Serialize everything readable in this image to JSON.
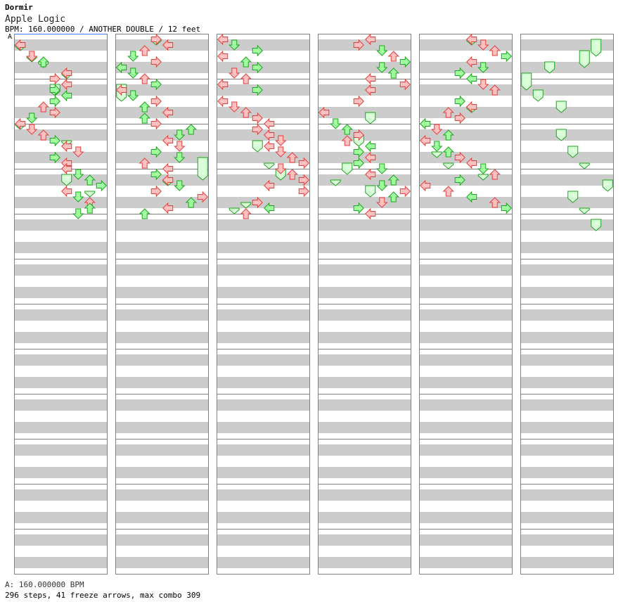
{
  "header": {
    "artist": "Dormir",
    "title": "Apple Logic",
    "info": "BPM: 160.000000 / ANOTHER DOUBLE / 12 feet"
  },
  "bpm_marker": "A",
  "footer": {
    "bpm_line": "A: 160.000000 BPM",
    "stats": "296 steps, 41 freeze arrows, max combo 309"
  },
  "colors": {
    "stripe": "#cccccc",
    "measure_line": "#808080",
    "border": "#808080",
    "red_fill": "#ffc0c0",
    "red_stroke": "#e04040",
    "green_fill": "#a0ffa0",
    "green_stroke": "#20a020",
    "freeze_fill": "#d8ffd8",
    "freeze_stroke": "#20a020"
  },
  "chart": {
    "columns": 6,
    "measures_per_column": 12,
    "beats_per_measure": 4,
    "lanes": 8,
    "lane_directions": [
      "left",
      "down",
      "up",
      "right",
      "left",
      "down",
      "up",
      "right"
    ],
    "steps": 296,
    "freeze_arrows": 41,
    "max_combo": 309,
    "notes": [
      [
        0,
        1.0,
        0,
        "r"
      ],
      [
        0,
        2.0,
        1,
        "r"
      ],
      [
        0,
        2.5,
        2,
        "g"
      ],
      [
        0,
        3.5,
        4,
        "r"
      ],
      [
        0,
        4.0,
        3,
        "r"
      ],
      [
        0,
        4.5,
        4,
        "r"
      ],
      [
        0,
        5.0,
        3,
        "g"
      ],
      [
        0,
        5.5,
        4,
        "g"
      ],
      [
        0,
        6.0,
        3,
        "g"
      ],
      [
        0,
        6.5,
        2,
        "r"
      ],
      [
        0,
        7.0,
        3,
        "r"
      ],
      [
        0,
        7.5,
        1,
        "g"
      ],
      [
        0,
        8.0,
        0,
        "r"
      ],
      [
        0,
        8.5,
        1,
        "r"
      ],
      [
        0,
        9.0,
        2,
        "r"
      ],
      [
        0,
        9.5,
        3,
        "g"
      ],
      [
        0,
        10.0,
        4,
        "r"
      ],
      [
        0,
        10.5,
        5,
        "r"
      ],
      [
        0,
        11.0,
        3,
        "g"
      ],
      [
        0,
        11.5,
        4,
        "r"
      ],
      [
        0,
        12.0,
        4,
        "r"
      ],
      [
        0,
        12.5,
        5,
        "g"
      ],
      [
        0,
        13.0,
        6,
        "g"
      ],
      [
        0,
        13.5,
        7,
        "g"
      ],
      [
        0,
        14.0,
        4,
        "r"
      ],
      [
        0,
        14.5,
        5,
        "g"
      ],
      [
        0,
        15.0,
        6,
        "r"
      ],
      [
        0,
        15.5,
        6,
        "g"
      ],
      [
        0,
        16.0,
        5,
        "g"
      ],
      [
        1,
        0.5,
        3,
        "r"
      ],
      [
        1,
        1.0,
        4,
        "r"
      ],
      [
        1,
        1.5,
        2,
        "r"
      ],
      [
        1,
        2.0,
        1,
        "g"
      ],
      [
        1,
        2.5,
        3,
        "r"
      ],
      [
        1,
        3.0,
        0,
        "g"
      ],
      [
        1,
        3.5,
        1,
        "g"
      ],
      [
        1,
        4.0,
        2,
        "r"
      ],
      [
        1,
        4.5,
        3,
        "g"
      ],
      [
        1,
        5.0,
        0,
        "r"
      ],
      [
        1,
        5.5,
        1,
        "g"
      ],
      [
        1,
        6.0,
        3,
        "r"
      ],
      [
        1,
        6.5,
        2,
        "g"
      ],
      [
        1,
        7.0,
        4,
        "r"
      ],
      [
        1,
        7.5,
        2,
        "g"
      ],
      [
        1,
        8.0,
        3,
        "r"
      ],
      [
        1,
        8.5,
        6,
        "g"
      ],
      [
        1,
        9.0,
        5,
        "g"
      ],
      [
        1,
        9.5,
        4,
        "r"
      ],
      [
        1,
        10.0,
        5,
        "r"
      ],
      [
        1,
        10.5,
        3,
        "g"
      ],
      [
        1,
        11.0,
        5,
        "g"
      ],
      [
        1,
        11.5,
        2,
        "r"
      ],
      [
        1,
        12.0,
        4,
        "r"
      ],
      [
        1,
        12.5,
        3,
        "g"
      ],
      [
        1,
        13.0,
        4,
        "r"
      ],
      [
        1,
        13.5,
        5,
        "g"
      ],
      [
        1,
        14.0,
        3,
        "r"
      ],
      [
        1,
        14.5,
        7,
        "r"
      ],
      [
        1,
        15.0,
        6,
        "g"
      ],
      [
        1,
        15.5,
        4,
        "r"
      ],
      [
        1,
        16.0,
        2,
        "g"
      ],
      [
        2,
        0.5,
        0,
        "r"
      ],
      [
        2,
        1.0,
        1,
        "g"
      ],
      [
        2,
        1.5,
        3,
        "g"
      ],
      [
        2,
        2.0,
        0,
        "r"
      ],
      [
        2,
        2.5,
        2,
        "g"
      ],
      [
        2,
        3.0,
        3,
        "g"
      ],
      [
        2,
        3.5,
        1,
        "r"
      ],
      [
        2,
        4.0,
        2,
        "r"
      ],
      [
        2,
        4.5,
        0,
        "r"
      ],
      [
        2,
        5.0,
        3,
        "g"
      ],
      [
        2,
        6.0,
        0,
        "r"
      ],
      [
        2,
        6.5,
        1,
        "r"
      ],
      [
        2,
        7.0,
        2,
        "r"
      ],
      [
        2,
        7.5,
        3,
        "r"
      ],
      [
        2,
        8.0,
        4,
        "r"
      ],
      [
        2,
        8.5,
        3,
        "r"
      ],
      [
        2,
        9.0,
        4,
        "r"
      ],
      [
        2,
        9.5,
        5,
        "r"
      ],
      [
        2,
        10.0,
        4,
        "r"
      ],
      [
        2,
        10.5,
        5,
        "r"
      ],
      [
        2,
        11.0,
        6,
        "r"
      ],
      [
        2,
        11.5,
        7,
        "r"
      ],
      [
        2,
        12.0,
        5,
        "r"
      ],
      [
        2,
        12.5,
        6,
        "r"
      ],
      [
        2,
        13.0,
        7,
        "r"
      ],
      [
        2,
        13.5,
        4,
        "r"
      ],
      [
        2,
        14.0,
        7,
        "r"
      ],
      [
        2,
        15.0,
        3,
        "r"
      ],
      [
        2,
        15.5,
        4,
        "g"
      ],
      [
        2,
        16.0,
        2,
        "r"
      ],
      [
        3,
        0.5,
        4,
        "r"
      ],
      [
        3,
        1.0,
        3,
        "r"
      ],
      [
        3,
        1.5,
        5,
        "g"
      ],
      [
        3,
        2.0,
        6,
        "r"
      ],
      [
        3,
        2.5,
        7,
        "g"
      ],
      [
        3,
        3.0,
        5,
        "g"
      ],
      [
        3,
        3.5,
        6,
        "g"
      ],
      [
        3,
        4.0,
        4,
        "r"
      ],
      [
        3,
        4.5,
        7,
        "r"
      ],
      [
        3,
        5.0,
        4,
        "r"
      ],
      [
        3,
        6.0,
        3,
        "r"
      ],
      [
        3,
        7.0,
        0,
        "r"
      ],
      [
        3,
        8.0,
        1,
        "g"
      ],
      [
        3,
        8.5,
        2,
        "g"
      ],
      [
        3,
        9.0,
        3,
        "r"
      ],
      [
        3,
        9.5,
        2,
        "r"
      ],
      [
        3,
        10.0,
        4,
        "g"
      ],
      [
        3,
        10.5,
        3,
        "g"
      ],
      [
        3,
        11.0,
        4,
        "r"
      ],
      [
        3,
        11.5,
        3,
        "g"
      ],
      [
        3,
        12.0,
        5,
        "g"
      ],
      [
        3,
        12.5,
        4,
        "r"
      ],
      [
        3,
        13.0,
        6,
        "g"
      ],
      [
        3,
        13.5,
        5,
        "g"
      ],
      [
        3,
        14.0,
        7,
        "r"
      ],
      [
        3,
        14.5,
        6,
        "g"
      ],
      [
        3,
        15.0,
        5,
        "r"
      ],
      [
        3,
        15.5,
        3,
        "g"
      ],
      [
        3,
        16.0,
        4,
        "r"
      ],
      [
        4,
        0.5,
        4,
        "r"
      ],
      [
        4,
        1.0,
        5,
        "r"
      ],
      [
        4,
        1.5,
        6,
        "r"
      ],
      [
        4,
        2.0,
        7,
        "g"
      ],
      [
        4,
        2.5,
        4,
        "r"
      ],
      [
        4,
        3.0,
        5,
        "g"
      ],
      [
        4,
        3.5,
        3,
        "g"
      ],
      [
        4,
        4.0,
        4,
        "g"
      ],
      [
        4,
        4.5,
        5,
        "r"
      ],
      [
        4,
        5.0,
        6,
        "r"
      ],
      [
        4,
        6.0,
        3,
        "g"
      ],
      [
        4,
        6.5,
        4,
        "r"
      ],
      [
        4,
        7.0,
        2,
        "r"
      ],
      [
        4,
        7.5,
        3,
        "r"
      ],
      [
        4,
        8.0,
        0,
        "g"
      ],
      [
        4,
        8.5,
        1,
        "r"
      ],
      [
        4,
        9.0,
        2,
        "g"
      ],
      [
        4,
        9.5,
        0,
        "r"
      ],
      [
        4,
        10.0,
        1,
        "g"
      ],
      [
        4,
        10.5,
        2,
        "g"
      ],
      [
        4,
        11.0,
        3,
        "r"
      ],
      [
        4,
        11.5,
        4,
        "r"
      ],
      [
        4,
        12.0,
        5,
        "g"
      ],
      [
        4,
        12.5,
        6,
        "r"
      ],
      [
        4,
        13.0,
        3,
        "g"
      ],
      [
        4,
        13.5,
        0,
        "r"
      ],
      [
        4,
        14.0,
        2,
        "r"
      ],
      [
        4,
        14.5,
        4,
        "g"
      ],
      [
        4,
        15.0,
        6,
        "r"
      ],
      [
        4,
        15.5,
        7,
        "g"
      ]
    ],
    "freezes": [
      [
        0,
        1.0,
        1.5,
        0
      ],
      [
        0,
        2.0,
        2.5,
        1
      ],
      [
        0,
        2.5,
        3.0,
        2
      ],
      [
        0,
        3.5,
        4.0,
        4
      ],
      [
        0,
        4.5,
        5.5,
        3
      ],
      [
        0,
        8.0,
        8.5,
        0
      ],
      [
        0,
        9.5,
        10.0,
        4
      ],
      [
        0,
        12.5,
        13.5,
        4
      ],
      [
        0,
        14.0,
        14.5,
        6
      ],
      [
        1,
        0.5,
        1.0,
        3
      ],
      [
        1,
        4.5,
        6.0,
        0
      ],
      [
        1,
        11.0,
        13.0,
        7
      ],
      [
        1,
        13.0,
        13.5,
        4
      ],
      [
        2,
        9.5,
        10.5,
        3
      ],
      [
        2,
        11.5,
        12.0,
        4
      ],
      [
        2,
        12.0,
        13.0,
        5
      ],
      [
        2,
        15.0,
        15.5,
        2
      ],
      [
        2,
        15.5,
        16.0,
        1
      ],
      [
        3,
        7.0,
        8.0,
        4
      ],
      [
        3,
        9.0,
        10.0,
        3
      ],
      [
        3,
        11.5,
        12.5,
        2
      ],
      [
        3,
        13.0,
        13.5,
        1
      ],
      [
        3,
        13.5,
        14.5,
        4
      ],
      [
        4,
        0.5,
        1.0,
        4
      ],
      [
        4,
        6.5,
        7.0,
        4
      ],
      [
        4,
        10.5,
        11.0,
        1
      ],
      [
        4,
        11.5,
        12.0,
        2
      ],
      [
        4,
        12.5,
        13.0,
        5
      ],
      [
        5,
        0.5,
        2.0,
        6
      ],
      [
        5,
        1.5,
        3.0,
        5
      ],
      [
        5,
        2.5,
        3.5,
        2
      ],
      [
        5,
        3.5,
        5.0,
        0
      ],
      [
        5,
        5.0,
        6.0,
        1
      ],
      [
        5,
        6.0,
        7.0,
        3
      ],
      [
        5,
        8.5,
        9.5,
        3
      ],
      [
        5,
        10.0,
        11.0,
        4
      ],
      [
        5,
        11.5,
        12.0,
        5
      ],
      [
        5,
        13.0,
        14.0,
        7
      ],
      [
        5,
        14.0,
        15.0,
        4
      ],
      [
        5,
        15.5,
        16.0,
        5
      ],
      [
        5,
        16.5,
        17.5,
        6
      ]
    ]
  }
}
